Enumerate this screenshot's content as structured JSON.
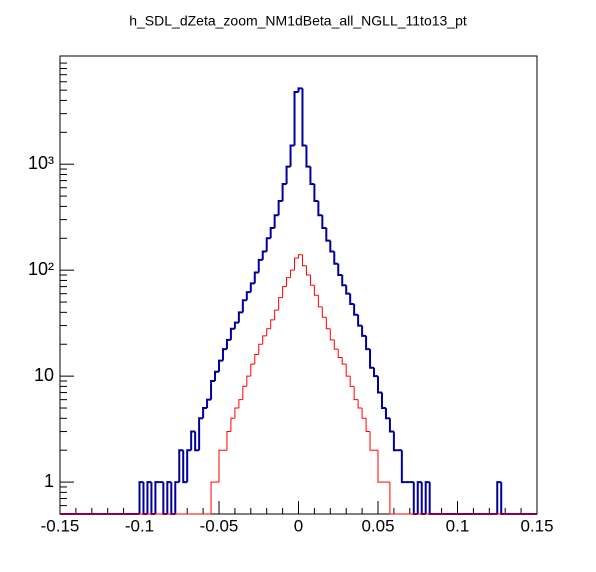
{
  "chart_data": {
    "type": "histogram",
    "title": "h_SDL_dZeta_zoom_NM1dBeta_all_NGLL_11to13_pt",
    "bins": [
      -0.15,
      -0.1475,
      -0.145,
      -0.1425,
      -0.14,
      -0.1375,
      -0.135,
      -0.1325,
      -0.13,
      -0.1275,
      -0.125,
      -0.1225,
      -0.12,
      -0.1175,
      -0.115,
      -0.1125,
      -0.11,
      -0.1075,
      -0.105,
      -0.1025,
      -0.1,
      -0.0975,
      -0.095,
      -0.0925,
      -0.09,
      -0.0875,
      -0.085,
      -0.0825,
      -0.08,
      -0.0775,
      -0.075,
      -0.0725,
      -0.07,
      -0.0675,
      -0.065,
      -0.0625,
      -0.06,
      -0.0575,
      -0.055,
      -0.0525,
      -0.05,
      -0.0475,
      -0.045,
      -0.0425,
      -0.04,
      -0.0375,
      -0.035,
      -0.0325,
      -0.03,
      -0.0275,
      -0.025,
      -0.0225,
      -0.02,
      -0.0175,
      -0.015,
      -0.0125,
      -0.01,
      -0.0075,
      -0.005,
      -0.0025,
      0,
      0.0025,
      0.005,
      0.0075,
      0.01,
      0.0125,
      0.015,
      0.0175,
      0.02,
      0.0225,
      0.025,
      0.0275,
      0.03,
      0.0325,
      0.035,
      0.0375,
      0.04,
      0.0425,
      0.045,
      0.0475,
      0.05,
      0.0525,
      0.055,
      0.0575,
      0.06,
      0.0625,
      0.065,
      0.0675,
      0.07,
      0.0725,
      0.075,
      0.0775,
      0.08,
      0.0825,
      0.085,
      0.0875,
      0.09,
      0.0925,
      0.095,
      0.0975,
      0.1,
      0.1025,
      0.105,
      0.1075,
      0.11,
      0.1125,
      0.115,
      0.1175,
      0.12,
      0.1225,
      0.125,
      0.1275,
      0.13,
      0.1325,
      0.135,
      0.1375,
      0.14,
      0.1425,
      0.145,
      0.1475,
      0.15
    ],
    "series": [
      {
        "color": "#000099",
        "values": [
          0,
          0,
          0,
          0,
          0,
          0,
          0,
          0,
          0,
          0,
          0,
          0,
          0,
          0,
          0,
          0,
          0,
          0,
          0,
          0,
          1,
          0,
          1,
          0,
          1,
          1,
          0,
          1,
          0,
          1,
          2,
          1,
          2,
          3,
          2,
          4,
          5,
          6,
          9,
          11,
          14,
          18,
          22,
          28,
          32,
          40,
          52,
          62,
          75,
          95,
          125,
          150,
          200,
          250,
          330,
          450,
          650,
          950,
          1500,
          4800,
          5200,
          1500,
          950,
          650,
          450,
          330,
          250,
          190,
          150,
          115,
          90,
          72,
          60,
          48,
          38,
          30,
          24,
          18,
          12,
          10,
          7,
          5,
          4,
          3,
          2,
          2,
          1,
          1,
          1,
          0,
          1,
          0,
          1,
          0,
          0,
          0,
          0,
          0,
          0,
          0,
          0,
          0,
          0,
          0,
          0,
          0,
          0,
          0,
          0,
          0,
          1,
          0,
          0,
          0,
          0,
          0,
          0,
          0,
          0,
          0
        ]
      },
      {
        "color": "#ff0000",
        "values": [
          0,
          0,
          0,
          0,
          0,
          0,
          0,
          0,
          0,
          0,
          0,
          0,
          0,
          0,
          0,
          0,
          0,
          0,
          0,
          0,
          0,
          0,
          0,
          0,
          0,
          0,
          0,
          0,
          0,
          0,
          0,
          0,
          0,
          0,
          0,
          0,
          0,
          0,
          1,
          1,
          2,
          2,
          3,
          4,
          5,
          6,
          8,
          10,
          13,
          16,
          20,
          24,
          28,
          34,
          42,
          55,
          70,
          85,
          100,
          130,
          140,
          110,
          90,
          72,
          58,
          45,
          36,
          28,
          22,
          18,
          15,
          13,
          10,
          8,
          6,
          5,
          4,
          3,
          2,
          2,
          1,
          1,
          1,
          0,
          0,
          0,
          0,
          0,
          0,
          0,
          0,
          0,
          0,
          0,
          0,
          0,
          0,
          0,
          0,
          0,
          0,
          0,
          0,
          0,
          0,
          0,
          0,
          0,
          0,
          0,
          0,
          0,
          0,
          0,
          0,
          0,
          0,
          0,
          0,
          0
        ]
      }
    ],
    "xlim": [
      -0.15,
      0.15
    ],
    "xticks": [
      -0.15,
      -0.1,
      -0.05,
      0,
      0.05,
      0.1,
      0.15
    ],
    "ylim": [
      0.5,
      10500
    ],
    "log_y": true,
    "yticks": [
      1,
      10,
      {
        "value": 100,
        "label": "10²"
      },
      {
        "value": 1000,
        "label": "10³"
      }
    ]
  }
}
